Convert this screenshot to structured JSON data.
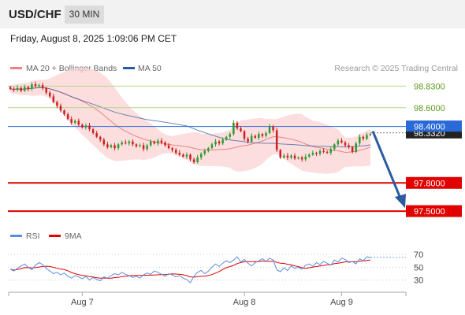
{
  "header": {
    "symbol": "USD/CHF",
    "timeframe": "30 MIN"
  },
  "datetime": "Friday, August 8, 2025 1:09:06 PM CET",
  "legend": {
    "ma20_label": "MA 20 + Bollinger Bands",
    "ma50_label": "MA 50",
    "credit": "Research © 2025 Trading Central"
  },
  "colors": {
    "ma20": "#f08080",
    "ma50": "#2c5aa0",
    "band_fill": "#fbd3d3",
    "candle_up": "#2e9a2e",
    "candle_down": "#cc2020",
    "resistance": "#b3d68a",
    "pivot": "#2a6ad8",
    "support": "#e00000",
    "arrow": "#2c5aa0",
    "rsi": "#5b8ee0",
    "rsi_ma": "#e00000"
  },
  "chart_data": [
    {
      "type": "candlestick",
      "title": "USD/CHF",
      "ylim": [
        0.974,
        0.9895
      ],
      "price_display_scale": 100,
      "x_ticks": [
        "Aug 7",
        "Aug 8",
        "Aug 9"
      ],
      "current_price_label": "98.3320",
      "levels": [
        {
          "value": "98.8300",
          "kind": "resistance"
        },
        {
          "value": "98.6000",
          "kind": "resistance"
        },
        {
          "value": "98.4000",
          "kind": "pivot"
        },
        {
          "value": "97.8000",
          "kind": "support"
        },
        {
          "value": "97.5000",
          "kind": "support"
        }
      ],
      "forecast_arrow": {
        "from": 0.9835,
        "to": 0.9755
      },
      "closes": [
        0.988,
        0.9879,
        0.9881,
        0.9878,
        0.9882,
        0.988,
        0.9885,
        0.9883,
        0.9884,
        0.9881,
        0.9876,
        0.9872,
        0.9866,
        0.9862,
        0.9857,
        0.9853,
        0.9848,
        0.9844,
        0.9846,
        0.9842,
        0.9839,
        0.9841,
        0.9837,
        0.9833,
        0.9829,
        0.9826,
        0.9821,
        0.9818,
        0.982,
        0.9817,
        0.9821,
        0.9823,
        0.9822,
        0.9824,
        0.9821,
        0.9819,
        0.982,
        0.9816,
        0.982,
        0.9824,
        0.9822,
        0.9825,
        0.9823,
        0.982,
        0.9817,
        0.9815,
        0.9812,
        0.981,
        0.9808,
        0.981,
        0.9805,
        0.9802,
        0.9807,
        0.9811,
        0.9814,
        0.9817,
        0.9821,
        0.9824,
        0.9822,
        0.9826,
        0.9829,
        0.9832,
        0.9844,
        0.9838,
        0.9835,
        0.9827,
        0.9824,
        0.983,
        0.9828,
        0.9832,
        0.983,
        0.9833,
        0.984,
        0.9836,
        0.9815,
        0.9807,
        0.9809,
        0.9807,
        0.9809,
        0.9806,
        0.9807,
        0.9805,
        0.9808,
        0.981,
        0.9812,
        0.9811,
        0.9814,
        0.9813,
        0.9812,
        0.9816,
        0.9821,
        0.9825,
        0.9823,
        0.982,
        0.9818,
        0.9813,
        0.9822,
        0.9829,
        0.9827,
        0.9831,
        0.9832
      ],
      "rsi": {
        "title": "RSI",
        "ma_label": "9MA",
        "ticks": [
          "70",
          "50",
          "30"
        ],
        "ylim": [
          15,
          82
        ],
        "values": [
          47,
          44,
          48,
          52,
          55,
          50,
          46,
          53,
          57,
          54,
          48,
          44,
          40,
          42,
          38,
          41,
          36,
          33,
          37,
          35,
          32,
          36,
          30,
          34,
          31,
          29,
          35,
          33,
          37,
          40,
          38,
          42,
          39,
          37,
          34,
          36,
          33,
          38,
          41,
          39,
          44,
          42,
          39,
          36,
          40,
          38,
          35,
          37,
          33,
          31,
          26,
          36,
          42,
          45,
          40,
          44,
          50,
          55,
          51,
          56,
          60,
          57,
          61,
          66,
          58,
          62,
          56,
          52,
          57,
          60,
          63,
          59,
          64,
          61,
          46,
          43,
          49,
          45,
          52,
          48,
          50,
          47,
          53,
          55,
          51,
          57,
          54,
          59,
          56,
          53,
          61,
          58,
          64,
          62,
          57,
          59,
          55,
          63,
          60,
          66,
          65
        ]
      }
    }
  ]
}
